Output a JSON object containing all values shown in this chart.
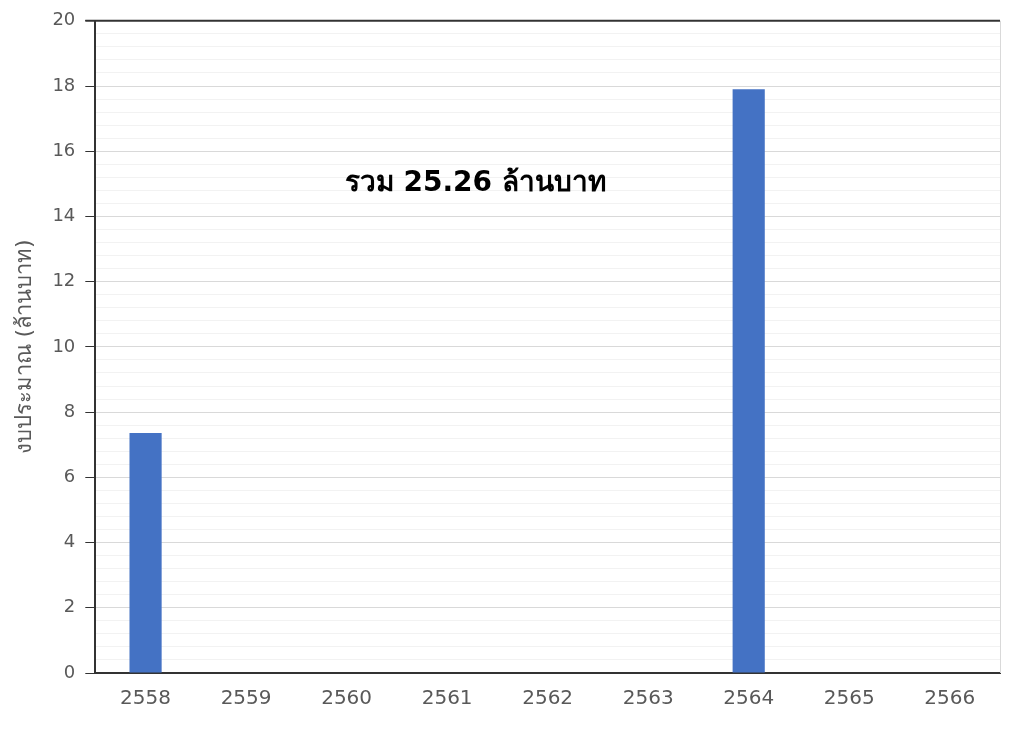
{
  "chart_data": {
    "type": "bar",
    "ylabel": "งบประมาณ (ล้านบาท)",
    "annotations": [
      "รวม 25.26 ล้านบาท"
    ],
    "categories": [
      "2558",
      "2559",
      "2560",
      "2561",
      "2562",
      "2563",
      "2564",
      "2565",
      "2566"
    ],
    "values": [
      7.36,
      0,
      0,
      0,
      0,
      0,
      17.9,
      0,
      0
    ],
    "color": "#4472c4",
    "ylim": [
      0,
      20
    ],
    "yticks": [
      0,
      {
        "value": 0.4,
        "label": null
      },
      {
        "value": 0.8,
        "label": null
      },
      {
        "value": 1.2,
        "label": null
      },
      {
        "value": 1.6,
        "label": null
      },
      2,
      {
        "value": 2.4,
        "label": null
      },
      {
        "value": 2.8,
        "label": null
      },
      {
        "value": 3.2,
        "label": null
      },
      {
        "value": 3.6,
        "label": null
      },
      4,
      {
        "value": 4.4,
        "label": null
      },
      {
        "value": 4.8,
        "label": null
      },
      {
        "value": 5.2,
        "label": null
      },
      {
        "value": 5.6,
        "label": null
      },
      6,
      {
        "value": 6.4,
        "label": null
      },
      {
        "value": 6.8,
        "label": null
      },
      {
        "value": 7.2,
        "label": null
      },
      {
        "value": 7.6,
        "label": null
      },
      8,
      {
        "value": 8.4,
        "label": null
      },
      {
        "value": 8.8,
        "label": null
      },
      {
        "value": 9.2,
        "label": null
      },
      {
        "value": 9.6,
        "label": null
      },
      10,
      {
        "value": 10.4,
        "label": null
      },
      {
        "value": 10.8,
        "label": null
      },
      {
        "value": 11.2,
        "label": null
      },
      {
        "value": 11.6,
        "label": null
      },
      12,
      {
        "value": 12.4,
        "label": null
      },
      {
        "value": 12.8,
        "label": null
      },
      {
        "value": 13.2,
        "label": null
      },
      {
        "value": 13.6,
        "label": null
      },
      14,
      {
        "value": 14.4,
        "label": null
      },
      {
        "value": 14.8,
        "label": null
      },
      {
        "value": 15.2,
        "label": null
      },
      {
        "value": 15.6,
        "label": null
      },
      16,
      {
        "value": 16.4,
        "label": null
      },
      {
        "value": 16.8,
        "label": null
      },
      {
        "value": 17.2,
        "label": null
      },
      {
        "value": 17.6,
        "label": null
      },
      18,
      {
        "value": 18.4,
        "label": null
      },
      {
        "value": 18.8,
        "label": null
      },
      {
        "value": 19.2,
        "label": null
      },
      {
        "value": 19.6,
        "label": null
      },
      20
    ],
    "grid": "y"
  }
}
